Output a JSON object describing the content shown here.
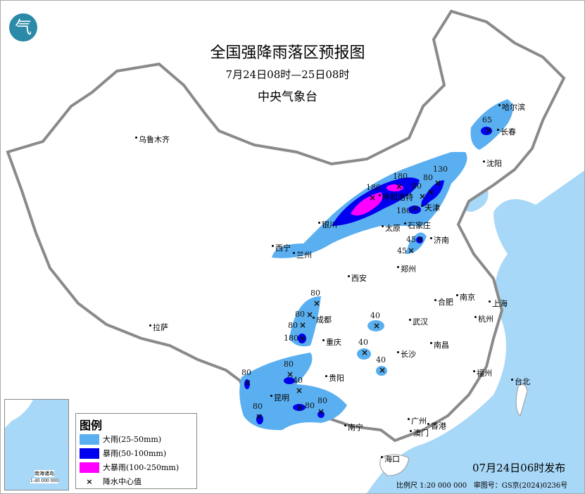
{
  "header": {
    "title": "全国强降雨落区预报图",
    "period": "7月24日08时—25日08时",
    "issuer": "中央气象台",
    "logo_text": "气"
  },
  "legend": {
    "title": "图例",
    "items": [
      {
        "label": "大雨(25-50mm)",
        "color": "#5aaff0"
      },
      {
        "label": "暴雨(50-100mm)",
        "color": "#0000ee"
      },
      {
        "label": "大暴雨(100-250mm)",
        "color": "#ff00ff"
      },
      {
        "label": "降水中心值",
        "icon": "x-mark-icon"
      }
    ]
  },
  "cities": [
    "乌鲁木齐",
    "哈尔滨",
    "长春",
    "沈阳",
    "呼和浩特",
    "天津",
    "石家庄",
    "太原",
    "济南",
    "银川",
    "西宁",
    "兰州",
    "郑州",
    "西安",
    "合肥",
    "南京",
    "上海",
    "杭州",
    "成都",
    "武汉",
    "重庆",
    "长沙",
    "南昌",
    "拉萨",
    "贵阳",
    "福州",
    "台北",
    "昆明",
    "南宁",
    "广州",
    "澳门",
    "香港",
    "海口"
  ],
  "rain_centers": [
    "65",
    "180",
    "180",
    "130",
    "80",
    "80",
    "180",
    "45",
    "45",
    "80",
    "80",
    "80",
    "180",
    "40",
    "40",
    "40",
    "80",
    "80",
    "40",
    "80",
    "80",
    "80"
  ],
  "inset": {
    "title": "南海诸岛",
    "scale": "1:40 000 000"
  },
  "footer": {
    "issued": "07月24日06时发布",
    "scale": "比例尺 1:20 000 000",
    "review_no": "审图号：GS京(2024)0236号"
  },
  "colors": {
    "sea": "#a8d8f8",
    "border": "#8a8a8a",
    "logo": "#2a8aa8"
  }
}
